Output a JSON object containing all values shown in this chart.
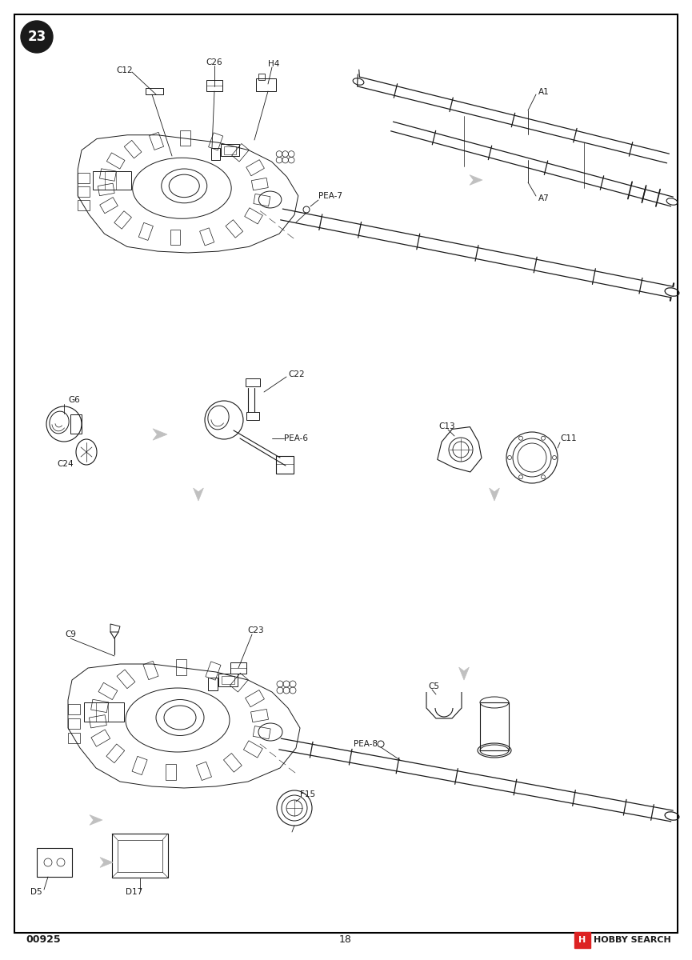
{
  "bg_color": "#ffffff",
  "border_color": "#000000",
  "line_color": "#1a1a1a",
  "text_color": "#1a1a1a",
  "step_number": "23",
  "page_number": "18",
  "product_code": "00925",
  "hobby_search": "HOBBY SEARCH",
  "gray_arrow_color": "#aaaaaa",
  "lw_main": 0.8,
  "lw_thin": 0.5,
  "lw_thick": 1.2,
  "font_label": 7.5,
  "font_footer": 9,
  "border_lw": 1.5
}
